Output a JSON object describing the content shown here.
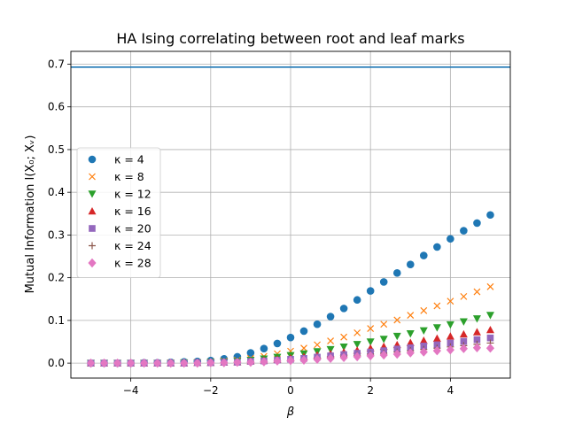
{
  "chart_data": {
    "type": "scatter",
    "title": "HA Ising correlating between root and leaf marks",
    "xlabel": "β",
    "ylabel": "Mutual Information I(X₀; Xᵥ)",
    "xlim": [
      -5.5,
      5.5
    ],
    "ylim": [
      -0.035,
      0.73
    ],
    "xticks": [
      -4,
      -2,
      0,
      2,
      4
    ],
    "yticks": [
      0.0,
      0.1,
      0.2,
      0.3,
      0.4,
      0.5,
      0.6,
      0.7
    ],
    "xtick_labels": [
      "−4",
      "−2",
      "0",
      "2",
      "4"
    ],
    "ytick_labels": [
      "0.0",
      "0.1",
      "0.2",
      "0.3",
      "0.4",
      "0.5",
      "0.6",
      "0.7"
    ],
    "grid": true,
    "legend_position": "center-left",
    "hline": {
      "y": 0.693,
      "color": "#1f77b4"
    },
    "x": [
      -5.0,
      -4.667,
      -4.333,
      -4.0,
      -3.667,
      -3.333,
      -3.0,
      -2.667,
      -2.333,
      -2.0,
      -1.667,
      -1.333,
      -1.0,
      -0.667,
      -0.333,
      0.0,
      0.333,
      0.667,
      1.0,
      1.333,
      1.667,
      2.0,
      2.333,
      2.667,
      3.0,
      3.333,
      3.667,
      4.0,
      4.333,
      4.667,
      5.0
    ],
    "series": [
      {
        "name": "κ = 4",
        "marker": "circle",
        "color": "#1f77b4",
        "values": [
          0.0,
          0.0,
          0.0,
          0.0,
          0.001,
          0.001,
          0.002,
          0.003,
          0.004,
          0.006,
          0.01,
          0.015,
          0.024,
          0.034,
          0.046,
          0.06,
          0.075,
          0.091,
          0.109,
          0.128,
          0.148,
          0.169,
          0.19,
          0.211,
          0.231,
          0.252,
          0.272,
          0.291,
          0.31,
          0.328,
          0.347
        ]
      },
      {
        "name": "κ = 8",
        "marker": "x",
        "color": "#ff7f0e",
        "values": [
          0.0,
          0.0,
          0.0,
          0.0,
          0.0,
          0.0,
          0.001,
          0.001,
          0.002,
          0.003,
          0.005,
          0.007,
          0.011,
          0.016,
          0.022,
          0.028,
          0.035,
          0.043,
          0.052,
          0.061,
          0.071,
          0.081,
          0.091,
          0.101,
          0.112,
          0.123,
          0.134,
          0.145,
          0.156,
          0.167,
          0.179
        ]
      },
      {
        "name": "κ = 12",
        "marker": "triangle-down",
        "color": "#2ca02c",
        "values": [
          0.0,
          0.0,
          0.0,
          0.0,
          0.0,
          0.0,
          0.0,
          0.001,
          0.001,
          0.002,
          0.003,
          0.004,
          0.007,
          0.01,
          0.014,
          0.018,
          0.022,
          0.027,
          0.032,
          0.038,
          0.044,
          0.05,
          0.056,
          0.063,
          0.069,
          0.076,
          0.083,
          0.09,
          0.097,
          0.104,
          0.112
        ]
      },
      {
        "name": "κ = 16",
        "marker": "triangle-up",
        "color": "#d62728",
        "values": [
          0.0,
          0.0,
          0.0,
          0.0,
          0.0,
          0.0,
          0.0,
          0.0,
          0.001,
          0.001,
          0.002,
          0.003,
          0.005,
          0.007,
          0.009,
          0.012,
          0.015,
          0.019,
          0.022,
          0.026,
          0.03,
          0.035,
          0.039,
          0.043,
          0.048,
          0.053,
          0.058,
          0.063,
          0.068,
          0.073,
          0.078
        ]
      },
      {
        "name": "κ = 20",
        "marker": "square",
        "color": "#9467bd",
        "values": [
          0.0,
          0.0,
          0.0,
          0.0,
          0.0,
          0.0,
          0.0,
          0.0,
          0.001,
          0.001,
          0.002,
          0.002,
          0.004,
          0.005,
          0.007,
          0.009,
          0.011,
          0.014,
          0.017,
          0.02,
          0.023,
          0.026,
          0.029,
          0.033,
          0.036,
          0.04,
          0.043,
          0.047,
          0.051,
          0.055,
          0.059
        ]
      },
      {
        "name": "κ = 24",
        "marker": "plus",
        "color": "#8c564b",
        "values": [
          0.0,
          0.0,
          0.0,
          0.0,
          0.0,
          0.0,
          0.0,
          0.0,
          0.0,
          0.001,
          0.001,
          0.002,
          0.003,
          0.004,
          0.006,
          0.007,
          0.009,
          0.011,
          0.013,
          0.016,
          0.018,
          0.021,
          0.023,
          0.026,
          0.029,
          0.032,
          0.035,
          0.038,
          0.041,
          0.044,
          0.047
        ]
      },
      {
        "name": "κ = 28",
        "marker": "diamond",
        "color": "#e377c2",
        "values": [
          0.0,
          0.0,
          0.0,
          0.0,
          0.0,
          0.0,
          0.0,
          0.0,
          0.0,
          0.001,
          0.001,
          0.002,
          0.002,
          0.003,
          0.005,
          0.006,
          0.007,
          0.009,
          0.011,
          0.013,
          0.015,
          0.017,
          0.019,
          0.021,
          0.024,
          0.026,
          0.029,
          0.031,
          0.034,
          0.036,
          0.035
        ]
      }
    ]
  }
}
